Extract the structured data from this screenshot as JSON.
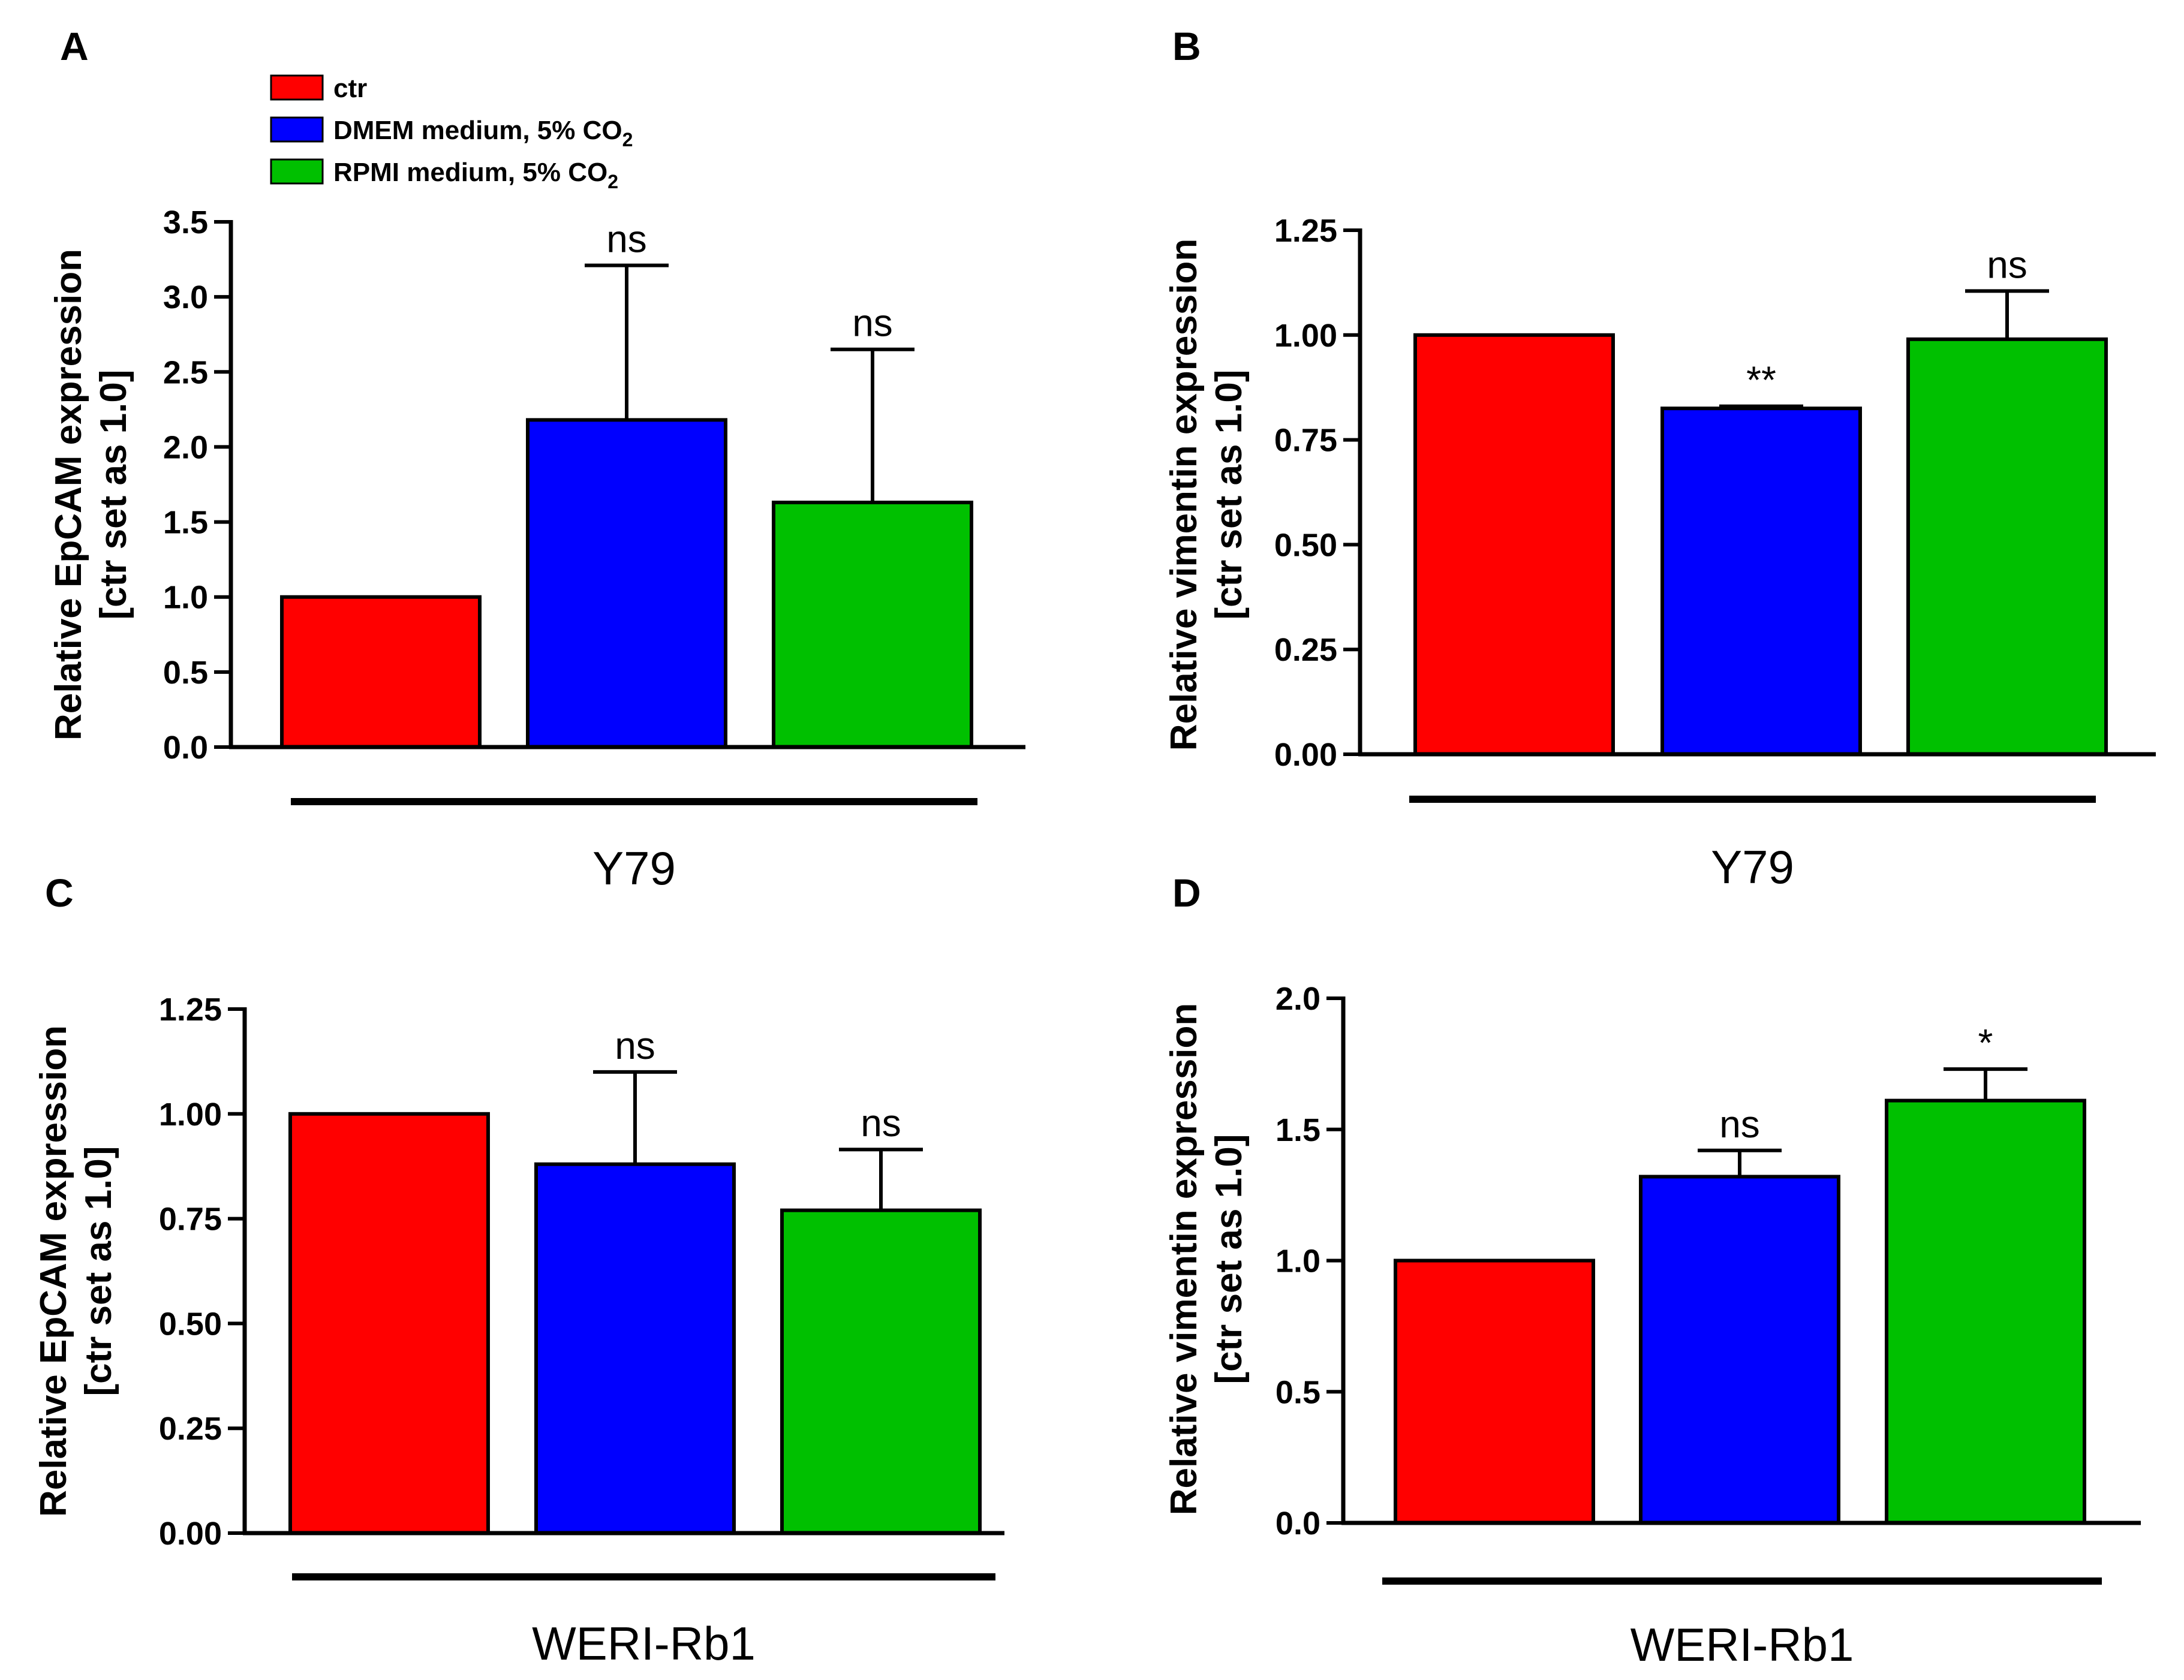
{
  "legend": {
    "items": [
      {
        "label": "ctr",
        "subscript": "",
        "color": "#ff0000"
      },
      {
        "label": "DMEM medium, 5% CO",
        "subscript": "2",
        "color": "#0000ff"
      },
      {
        "label": "RPMI medium, 5% CO",
        "subscript": "2",
        "color": "#00c000"
      }
    ]
  },
  "chart_data": [
    {
      "panel": "A",
      "type": "bar",
      "categories": [
        "ctr",
        "DMEM medium, 5% CO2",
        "RPMI medium, 5% CO2"
      ],
      "values": [
        1.0,
        2.18,
        1.63
      ],
      "errors": [
        0,
        1.03,
        1.02
      ],
      "significance": [
        "",
        "ns",
        "ns"
      ],
      "colors": [
        "#ff0000",
        "#0000ff",
        "#00c000"
      ],
      "ylabel_line1": "Relative EpCAM expression",
      "ylabel_line2": "[ctr set as 1.0]",
      "group_label": "Y79",
      "ylim": [
        0,
        3.5
      ],
      "yticks": [
        "0.0",
        "0.5",
        "1.0",
        "1.5",
        "2.0",
        "2.5",
        "3.0",
        "3.5"
      ]
    },
    {
      "panel": "B",
      "type": "bar",
      "categories": [
        "ctr",
        "DMEM medium, 5% CO2",
        "RPMI medium, 5% CO2"
      ],
      "values": [
        1.0,
        0.825,
        0.99
      ],
      "errors": [
        0,
        0.005,
        0.115
      ],
      "significance": [
        "",
        "**",
        "ns"
      ],
      "colors": [
        "#ff0000",
        "#0000ff",
        "#00c000"
      ],
      "ylabel_line1": "Relative vimentin expression",
      "ylabel_line2": "[ctr set as 1.0]",
      "group_label": "Y79",
      "ylim": [
        0,
        1.25
      ],
      "yticks": [
        "0.00",
        "0.25",
        "0.50",
        "0.75",
        "1.00",
        "1.25"
      ]
    },
    {
      "panel": "C",
      "type": "bar",
      "categories": [
        "ctr",
        "DMEM medium, 5% CO2",
        "RPMI medium, 5% CO2"
      ],
      "values": [
        1.0,
        0.88,
        0.77
      ],
      "errors": [
        0,
        0.22,
        0.145
      ],
      "significance": [
        "",
        "ns",
        "ns"
      ],
      "colors": [
        "#ff0000",
        "#0000ff",
        "#00c000"
      ],
      "ylabel_line1": "Relative EpCAM expression",
      "ylabel_line2": "[ctr set as 1.0]",
      "group_label": "WERI-Rb1",
      "ylim": [
        0,
        1.25
      ],
      "yticks": [
        "0.00",
        "0.25",
        "0.50",
        "0.75",
        "1.00",
        "1.25"
      ]
    },
    {
      "panel": "D",
      "type": "bar",
      "categories": [
        "ctr",
        "DMEM medium, 5% CO2",
        "RPMI medium, 5% CO2"
      ],
      "values": [
        1.0,
        1.32,
        1.61
      ],
      "errors": [
        0,
        0.1,
        0.12
      ],
      "significance": [
        "",
        "ns",
        "*"
      ],
      "colors": [
        "#ff0000",
        "#0000ff",
        "#00c000"
      ],
      "ylabel_line1": "Relative vimentin expression",
      "ylabel_line2": "[ctr set as 1.0]",
      "group_label": "WERI-Rb1",
      "ylim": [
        0,
        2.0
      ],
      "yticks": [
        "0.0",
        "0.5",
        "1.0",
        "1.5",
        "2.0"
      ]
    }
  ]
}
